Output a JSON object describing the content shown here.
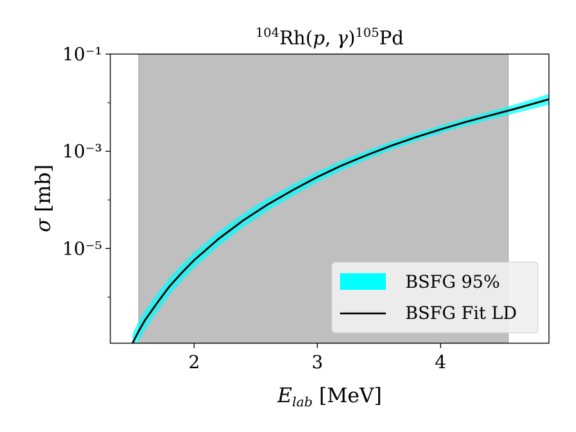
{
  "chart_data": {
    "type": "line",
    "title": "104Rh(p,γ)105Pd",
    "xlabel": "E_lab [MeV]",
    "ylabel": "σ [mb]",
    "xlim": [
      1.32,
      4.88
    ],
    "ylim_log10": [
      -6.95,
      -1.0
    ],
    "yscale": "log",
    "x_ticks": [
      2,
      3,
      4
    ],
    "x_tick_labels": [
      "2",
      "3",
      "4"
    ],
    "y_ticks_log10": [
      -1,
      -3,
      -5
    ],
    "y_tick_labels": [
      "10⁻¹",
      "10⁻³",
      "10⁻⁵"
    ],
    "shaded_region": {
      "x0": 1.55,
      "x1": 4.55,
      "color": "#bfbfbf"
    },
    "band": {
      "name": "BSFG 95%",
      "color": "#00ffff",
      "x": [
        1.5,
        1.55,
        1.6,
        1.7,
        1.8,
        1.9,
        2.0,
        2.2,
        2.4,
        2.6,
        2.8,
        3.0,
        3.2,
        3.4,
        3.6,
        3.8,
        4.0,
        4.2,
        4.4,
        4.6,
        4.88
      ],
      "upper": [
        -6.75,
        -6.5,
        -6.28,
        -5.93,
        -5.6,
        -5.33,
        -5.08,
        -4.65,
        -4.28,
        -3.96,
        -3.68,
        -3.42,
        -3.19,
        -2.99,
        -2.8,
        -2.63,
        -2.47,
        -2.32,
        -2.18,
        -2.04,
        -1.82
      ],
      "lower": [
        -7.15,
        -6.9,
        -6.68,
        -6.31,
        -5.96,
        -5.67,
        -5.4,
        -4.95,
        -4.56,
        -4.22,
        -3.92,
        -3.64,
        -3.39,
        -3.17,
        -2.97,
        -2.79,
        -2.63,
        -2.48,
        -2.35,
        -2.22,
        -2.04
      ]
    },
    "series": [
      {
        "name": "BSFG Fit LD",
        "color": "#000000",
        "x": [
          1.5,
          1.55,
          1.6,
          1.7,
          1.8,
          1.9,
          2.0,
          2.2,
          2.4,
          2.6,
          2.8,
          3.0,
          3.2,
          3.4,
          3.6,
          3.8,
          4.0,
          4.2,
          4.4,
          4.6,
          4.88
        ],
        "log10y": [
          -6.95,
          -6.7,
          -6.48,
          -6.12,
          -5.78,
          -5.5,
          -5.24,
          -4.8,
          -4.42,
          -4.09,
          -3.8,
          -3.53,
          -3.29,
          -3.08,
          -2.885,
          -2.71,
          -2.55,
          -2.4,
          -2.265,
          -2.13,
          -1.93
        ]
      }
    ],
    "legend": {
      "placement": "bottom-right",
      "band_label": "BSFG 95%",
      "line_label": "BSFG Fit LD"
    },
    "grid": false
  }
}
